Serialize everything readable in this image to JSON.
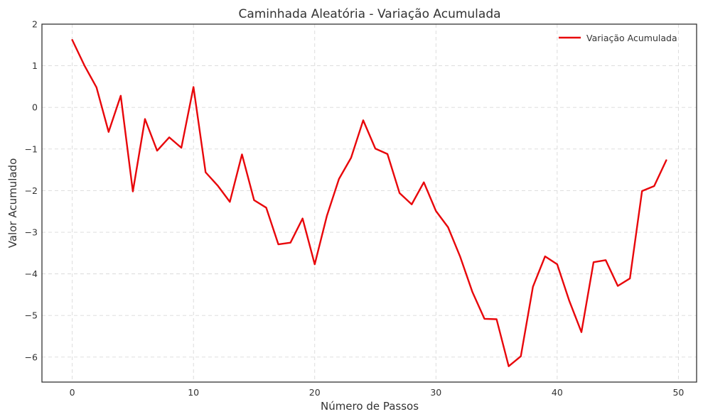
{
  "chart_data": {
    "type": "line",
    "title": "Caminhada Aleatória - Variação Acumulada",
    "xlabel": "Número de Passos",
    "ylabel": "Valor Acumulado",
    "xlim": [
      -2.5,
      51.5
    ],
    "ylim": [
      -6.6,
      2.0
    ],
    "xticks": [
      0,
      10,
      20,
      30,
      40,
      50
    ],
    "yticks": [
      2,
      1,
      0,
      -1,
      -2,
      -3,
      -4,
      -5,
      -6
    ],
    "xtick_labels": [
      "0",
      "10",
      "20",
      "30",
      "40",
      "50"
    ],
    "ytick_labels": [
      "2",
      "1",
      "0",
      "−1",
      "−2",
      "−3",
      "−4",
      "−5",
      "−6"
    ],
    "grid": true,
    "legend_position": "top-right",
    "colors": {
      "line": "#e8060a"
    },
    "x": [
      0,
      1,
      2,
      3,
      4,
      5,
      6,
      7,
      8,
      9,
      10,
      11,
      12,
      13,
      14,
      15,
      16,
      17,
      18,
      19,
      20,
      21,
      22,
      23,
      24,
      25,
      26,
      27,
      28,
      29,
      30,
      31,
      32,
      33,
      34,
      35,
      36,
      37,
      38,
      39,
      40,
      41,
      42,
      43,
      44,
      45,
      46,
      47,
      48,
      49
    ],
    "series": [
      {
        "name": "Variação Acumulada",
        "values": [
          1.62,
          1.01,
          0.48,
          -0.59,
          0.28,
          -2.02,
          -0.28,
          -1.04,
          -0.72,
          -0.97,
          0.49,
          -1.56,
          -1.88,
          -2.27,
          -1.13,
          -2.23,
          -2.41,
          -3.29,
          -3.25,
          -2.67,
          -3.77,
          -2.61,
          -1.72,
          -1.21,
          -0.31,
          -0.99,
          -1.12,
          -2.06,
          -2.33,
          -1.8,
          -2.49,
          -2.88,
          -3.59,
          -4.43,
          -5.08,
          -5.09,
          -6.22,
          -5.98,
          -4.31,
          -3.58,
          -3.77,
          -4.65,
          -5.4,
          -3.72,
          -3.67,
          -4.29,
          -4.11,
          -2.01,
          -1.89,
          -1.27
        ]
      }
    ]
  }
}
